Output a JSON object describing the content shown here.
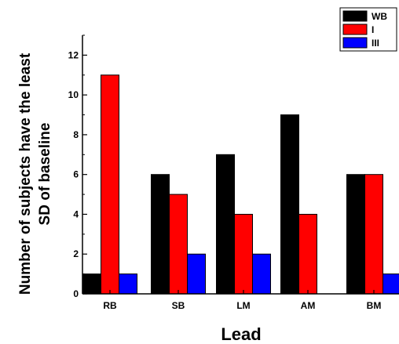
{
  "chart_data": {
    "type": "bar",
    "categories": [
      "RB",
      "SB",
      "LM",
      "AM",
      "BM"
    ],
    "series": [
      {
        "name": "WB",
        "color": "#000000",
        "values": [
          1,
          6,
          7,
          9,
          6
        ]
      },
      {
        "name": "I",
        "color": "#ff0000",
        "values": [
          11,
          5,
          4,
          4,
          6
        ]
      },
      {
        "name": "III",
        "color": "#0000ff",
        "values": [
          1,
          2,
          2,
          0,
          1
        ]
      }
    ],
    "xlabel": "Lead",
    "ylabel_line1": "Number of subjects have the least",
    "ylabel_line2": "SD of baseline",
    "ylim": [
      0,
      13
    ],
    "yticks": [
      0,
      2,
      4,
      6,
      8,
      10,
      12
    ],
    "legend_position": "top-right",
    "grid": false
  }
}
